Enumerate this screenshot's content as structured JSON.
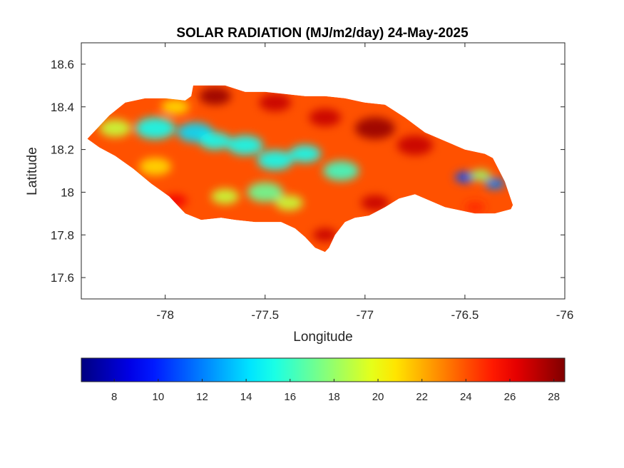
{
  "chart_data": {
    "type": "heatmap",
    "title": "SOLAR RADIATION (MJ/m2/day) 24-May-2025",
    "xlabel": "Longitude",
    "ylabel": "Latitude",
    "xlim": [
      -78.42,
      -76.0
    ],
    "ylim": [
      17.5,
      18.7
    ],
    "xticks": [
      -78,
      -77.5,
      -77,
      -76.5,
      -76
    ],
    "xtick_labels": [
      "-78",
      "-77.5",
      "-77",
      "-76.5",
      "-76"
    ],
    "yticks": [
      17.6,
      17.8,
      18,
      18.2,
      18.4,
      18.6
    ],
    "ytick_labels": [
      "17.6",
      "17.8",
      "18",
      "18.2",
      "18.4",
      "18.6"
    ],
    "colorbar": {
      "colormap": "jet",
      "orientation": "horizontal",
      "clim": [
        6.5,
        28.5
      ],
      "ticks": [
        8,
        10,
        12,
        14,
        16,
        18,
        20,
        22,
        24,
        26,
        28
      ],
      "tick_labels": [
        "8",
        "10",
        "12",
        "14",
        "16",
        "18",
        "20",
        "22",
        "24",
        "26",
        "28"
      ]
    },
    "grid": false,
    "background_value": 24,
    "outline": [
      [
        -78.37,
        18.27
      ],
      [
        -78.33,
        18.31
      ],
      [
        -78.28,
        18.36
      ],
      [
        -78.2,
        18.42
      ],
      [
        -78.1,
        18.44
      ],
      [
        -78.0,
        18.44
      ],
      [
        -77.9,
        18.43
      ],
      [
        -77.87,
        18.45
      ],
      [
        -77.86,
        18.5
      ],
      [
        -77.7,
        18.5
      ],
      [
        -77.6,
        18.47
      ],
      [
        -77.5,
        18.47
      ],
      [
        -77.4,
        18.46
      ],
      [
        -77.3,
        18.45
      ],
      [
        -77.2,
        18.45
      ],
      [
        -77.1,
        18.44
      ],
      [
        -77.0,
        18.42
      ],
      [
        -76.9,
        18.41
      ],
      [
        -76.8,
        18.35
      ],
      [
        -76.7,
        18.28
      ],
      [
        -76.6,
        18.24
      ],
      [
        -76.5,
        18.2
      ],
      [
        -76.4,
        18.18
      ],
      [
        -76.36,
        18.16
      ],
      [
        -76.3,
        18.05
      ],
      [
        -76.26,
        17.94
      ],
      [
        -76.27,
        17.92
      ],
      [
        -76.35,
        17.9
      ],
      [
        -76.45,
        17.9
      ],
      [
        -76.6,
        17.93
      ],
      [
        -76.7,
        17.97
      ],
      [
        -76.75,
        17.99
      ],
      [
        -76.83,
        17.97
      ],
      [
        -76.9,
        17.93
      ],
      [
        -76.98,
        17.89
      ],
      [
        -77.05,
        17.88
      ],
      [
        -77.1,
        17.86
      ],
      [
        -77.15,
        17.8
      ],
      [
        -77.18,
        17.74
      ],
      [
        -77.2,
        17.72
      ],
      [
        -77.25,
        17.74
      ],
      [
        -77.3,
        17.79
      ],
      [
        -77.35,
        17.83
      ],
      [
        -77.42,
        17.86
      ],
      [
        -77.48,
        17.86
      ],
      [
        -77.55,
        17.86
      ],
      [
        -77.65,
        17.87
      ],
      [
        -77.72,
        17.88
      ],
      [
        -77.82,
        17.87
      ],
      [
        -77.9,
        17.9
      ],
      [
        -77.98,
        17.98
      ],
      [
        -78.07,
        18.04
      ],
      [
        -78.16,
        18.11
      ],
      [
        -78.25,
        18.17
      ],
      [
        -78.33,
        18.21
      ],
      [
        -78.39,
        18.25
      ]
    ],
    "field_anomalies": [
      {
        "lon": -78.25,
        "lat": 18.3,
        "value": 19,
        "radius": 0.08
      },
      {
        "lon": -78.05,
        "lat": 18.3,
        "value": 15,
        "radius": 0.1
      },
      {
        "lon": -77.85,
        "lat": 18.28,
        "value": 14,
        "radius": 0.09
      },
      {
        "lon": -77.75,
        "lat": 18.24,
        "value": 15,
        "radius": 0.08
      },
      {
        "lon": -77.6,
        "lat": 18.22,
        "value": 15,
        "radius": 0.09
      },
      {
        "lon": -77.45,
        "lat": 18.15,
        "value": 15,
        "radius": 0.09
      },
      {
        "lon": -77.3,
        "lat": 18.18,
        "value": 15,
        "radius": 0.08
      },
      {
        "lon": -77.5,
        "lat": 18.0,
        "value": 17,
        "radius": 0.09
      },
      {
        "lon": -77.12,
        "lat": 18.1,
        "value": 16,
        "radius": 0.09
      },
      {
        "lon": -77.38,
        "lat": 17.95,
        "value": 19,
        "radius": 0.07
      },
      {
        "lon": -77.7,
        "lat": 17.98,
        "value": 19,
        "radius": 0.07
      },
      {
        "lon": -78.05,
        "lat": 18.12,
        "value": 21,
        "radius": 0.08
      },
      {
        "lon": -77.95,
        "lat": 18.4,
        "value": 21,
        "radius": 0.07
      },
      {
        "lon": -77.75,
        "lat": 18.45,
        "value": 28,
        "radius": 0.08
      },
      {
        "lon": -77.45,
        "lat": 18.42,
        "value": 27,
        "radius": 0.08
      },
      {
        "lon": -77.2,
        "lat": 18.35,
        "value": 27,
        "radius": 0.08
      },
      {
        "lon": -76.95,
        "lat": 18.3,
        "value": 28,
        "radius": 0.1
      },
      {
        "lon": -76.75,
        "lat": 18.22,
        "value": 27,
        "radius": 0.09
      },
      {
        "lon": -77.95,
        "lat": 17.96,
        "value": 26,
        "radius": 0.06
      },
      {
        "lon": -77.2,
        "lat": 17.8,
        "value": 27,
        "radius": 0.06
      },
      {
        "lon": -76.95,
        "lat": 17.95,
        "value": 27,
        "radius": 0.07
      },
      {
        "lon": -76.5,
        "lat": 18.07,
        "value": 11,
        "radius": 0.05
      },
      {
        "lon": -76.35,
        "lat": 18.04,
        "value": 12,
        "radius": 0.05
      },
      {
        "lon": -76.42,
        "lat": 18.08,
        "value": 18,
        "radius": 0.05
      },
      {
        "lon": -76.45,
        "lat": 17.93,
        "value": 25,
        "radius": 0.05
      }
    ]
  },
  "colors": {
    "axes_box": "#262626",
    "background": "#ffffff"
  }
}
